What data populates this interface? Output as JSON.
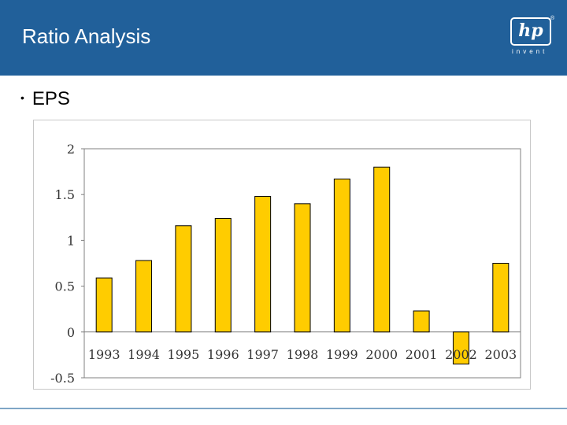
{
  "header": {
    "title": "Ratio Analysis",
    "logo_text": "hp",
    "logo_registered": "®",
    "logo_tagline": "invent",
    "background_color": "#21609a"
  },
  "bullet": {
    "symbol": "•",
    "text": "EPS"
  },
  "chart_data": {
    "type": "bar",
    "title": "",
    "xlabel": "",
    "ylabel": "",
    "categories": [
      "1993",
      "1994",
      "1995",
      "1996",
      "1997",
      "1998",
      "1999",
      "2000",
      "2001",
      "2002",
      "2003"
    ],
    "values": [
      0.59,
      0.78,
      1.16,
      1.24,
      1.48,
      1.4,
      1.67,
      1.8,
      0.23,
      -0.35,
      0.75
    ],
    "ylim": [
      -0.5,
      2
    ],
    "yticks": [
      -0.5,
      0,
      0.5,
      1,
      1.5,
      2
    ],
    "ytick_labels": [
      "-0.5",
      "0",
      "0.5",
      "1",
      "1.5",
      "2"
    ],
    "grid": false,
    "bar_color": "#ffcc00",
    "bar_outline_color": "#000000"
  }
}
